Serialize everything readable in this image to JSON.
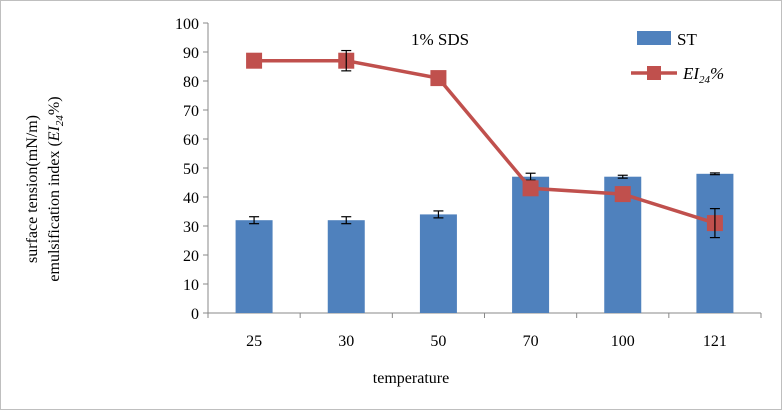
{
  "chart_data": {
    "type": "bar",
    "categories": [
      "25",
      "30",
      "50",
      "70",
      "100",
      "121"
    ],
    "xlabel": "temperature",
    "ylabel_lines": [
      "surface  tension(mN/m)",
      "emulsification index (EI24%)"
    ],
    "ylim": [
      0,
      100
    ],
    "yticks": [
      0,
      10,
      20,
      30,
      40,
      50,
      60,
      70,
      80,
      90,
      100
    ],
    "annotation": "1% SDS",
    "legend_position": "top-right",
    "grid": false,
    "series": [
      {
        "name": "ST",
        "type": "bar",
        "color": "#4f81bd",
        "values": [
          32,
          32,
          34,
          47,
          47,
          48
        ],
        "errors": [
          1.2,
          1.2,
          1.2,
          1.2,
          0.5,
          0.3
        ]
      },
      {
        "name": "EI24%",
        "type": "line",
        "color": "#c0504d",
        "values": [
          87,
          87,
          81,
          43,
          41,
          31
        ],
        "errors": [
          0,
          3.5,
          0,
          0,
          0,
          5
        ]
      }
    ]
  }
}
